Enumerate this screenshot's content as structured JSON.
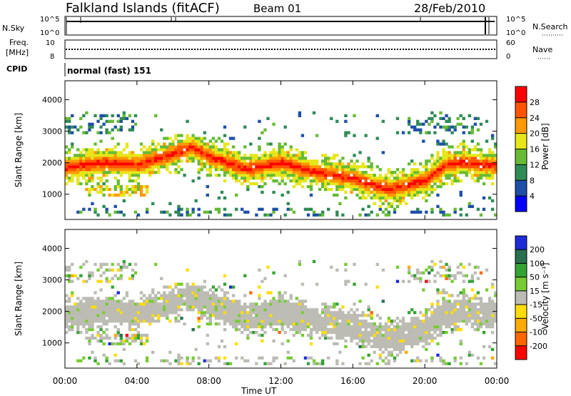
{
  "header": {
    "station": "Falkland Islands (fitACF)",
    "beam": "Beam 01",
    "date": "28/Feb/2010"
  },
  "nsky_panel": {
    "left_label": "N.Sky",
    "right_label": "N.Search",
    "left_ticks": [
      "10^5",
      "10^0"
    ],
    "right_ticks": [
      "10^5",
      "10^0"
    ]
  },
  "freq_panel": {
    "left_label_1": "Freq.",
    "left_label_2": "[MHz]",
    "right_label": "Nave",
    "left_ticks": [
      "10",
      "8"
    ],
    "right_ticks": [
      "60",
      "0"
    ]
  },
  "cpid_panel": {
    "label": "CPID",
    "program": "normal (fast) 151"
  },
  "chart_data": [
    {
      "type": "heatmap",
      "name": "power",
      "ylabel": "Slant Range [km]",
      "yticks": [
        1000,
        2000,
        3000,
        4000
      ],
      "ylim": [
        200,
        4600
      ],
      "colorbar_label": "Power [dB]",
      "colorbar_ticks": [
        4,
        8,
        12,
        16,
        20,
        24,
        28
      ],
      "colorbar_range": [
        0,
        32
      ],
      "colors": [
        "#0000ff",
        "#1e4fa8",
        "#2e8b57",
        "#66bb33",
        "#e6e619",
        "#ff9900",
        "#ff5500",
        "#ff0000"
      ]
    },
    {
      "type": "heatmap",
      "name": "velocity",
      "ylabel": "Slant Range [km]",
      "yticks": [
        1000,
        2000,
        3000,
        4000
      ],
      "ylim": [
        200,
        4600
      ],
      "colorbar_label": "Velocity [m s⁻¹]",
      "colorbar_ticks": [
        200,
        100,
        50,
        15,
        -15,
        -50,
        -100,
        -200
      ],
      "colors": [
        "#1e2ad8",
        "#2a6f4f",
        "#33a333",
        "#77cc33",
        "#bcbcb4",
        "#ffdd00",
        "#ffaa00",
        "#ff6600",
        "#ff0000"
      ]
    }
  ],
  "time_axis": {
    "label": "Time UT",
    "ticks": [
      "00:00",
      "04:00",
      "08:00",
      "12:00",
      "16:00",
      "20:00",
      "00:00"
    ],
    "hours": [
      0,
      4,
      8,
      12,
      16,
      20,
      24
    ]
  }
}
